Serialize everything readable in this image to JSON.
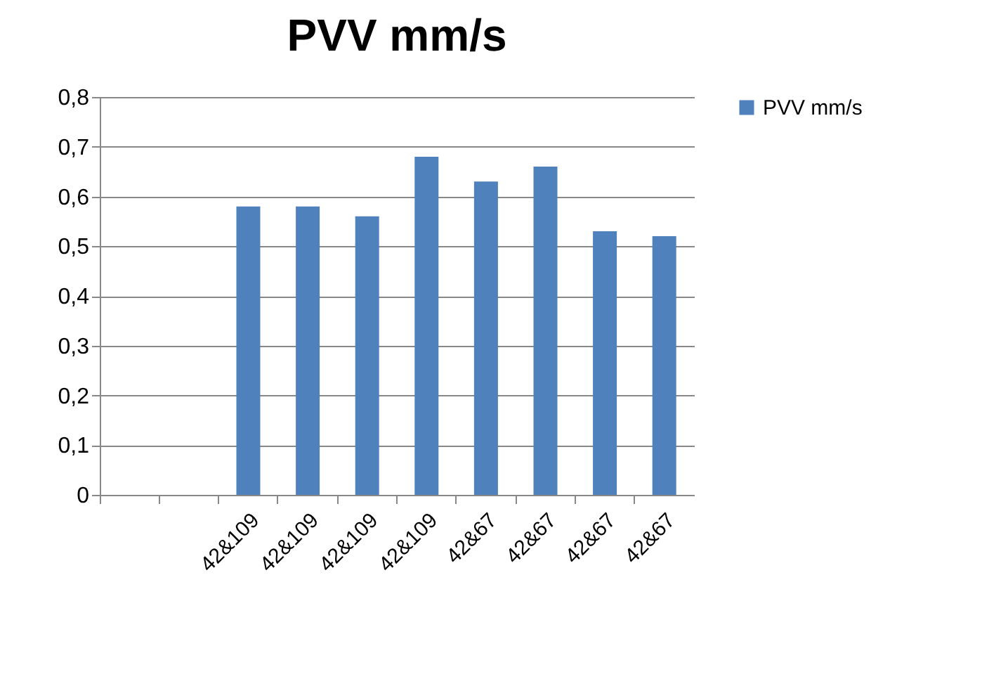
{
  "chart_data": {
    "type": "bar",
    "title": "PVV mm/s",
    "categories": [
      null,
      null,
      "42&109",
      "42&109",
      "42&109",
      "42&109",
      "42&67",
      "42&67",
      "42&67",
      "42&67"
    ],
    "series": [
      {
        "name": "PVV mm/s",
        "color": "#4f81bd",
        "values": [
          null,
          null,
          0.58,
          0.58,
          0.56,
          0.68,
          0.63,
          0.66,
          0.53,
          0.52
        ]
      }
    ],
    "ylim": [
      0,
      0.8
    ],
    "yticks": [
      {
        "value": 0,
        "label": "0"
      },
      {
        "value": 0.1,
        "label": "0,1"
      },
      {
        "value": 0.2,
        "label": "0,2"
      },
      {
        "value": 0.3,
        "label": "0,3"
      },
      {
        "value": 0.4,
        "label": "0,4"
      },
      {
        "value": 0.5,
        "label": "0,5"
      },
      {
        "value": 0.6,
        "label": "0,6"
      },
      {
        "value": 0.7,
        "label": "0,7"
      },
      {
        "value": 0.8,
        "label": "0,8"
      }
    ],
    "grid": "y",
    "legend": "right"
  }
}
